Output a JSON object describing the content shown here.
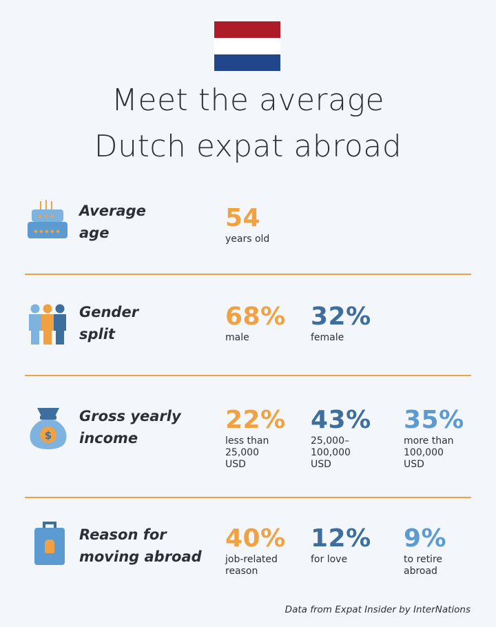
{
  "title": {
    "line1": "Meet the average",
    "line2": "Dutch expat abroad"
  },
  "flag": {
    "colors": [
      "#ae1c28",
      "#ffffff",
      "#21468b"
    ]
  },
  "colors": {
    "accent_orange": "#f0a141",
    "dark_blue": "#3d6e9d",
    "light_blue": "#5b9bd2"
  },
  "sections": [
    {
      "icon": "birthday-cake-icon",
      "label_lines": [
        "Average",
        "age"
      ],
      "stats": [
        {
          "value": "54",
          "desc_lines": [
            "years old"
          ]
        }
      ]
    },
    {
      "icon": "people-icon",
      "label_lines": [
        "Gender",
        "split"
      ],
      "stats": [
        {
          "value": "68%",
          "desc_lines": [
            "male"
          ]
        },
        {
          "value": "32%",
          "desc_lines": [
            "female"
          ]
        }
      ]
    },
    {
      "icon": "money-bag-icon",
      "label_lines": [
        "Gross yearly",
        "income"
      ],
      "stats": [
        {
          "value": "22%",
          "desc_lines": [
            "less than",
            "25,000",
            "USD"
          ]
        },
        {
          "value": "43%",
          "desc_lines": [
            "25,000–",
            "100,000",
            "USD"
          ]
        },
        {
          "value": "35%",
          "desc_lines": [
            "more than",
            "100,000",
            "USD"
          ]
        }
      ]
    },
    {
      "icon": "suitcase-icon",
      "label_lines": [
        "Reason for",
        "moving abroad"
      ],
      "stats": [
        {
          "value": "40%",
          "desc_lines": [
            "job-related",
            "reason"
          ]
        },
        {
          "value": "12%",
          "desc_lines": [
            "for love"
          ]
        },
        {
          "value": "9%",
          "desc_lines": [
            "to retire",
            "abroad"
          ]
        }
      ]
    }
  ],
  "footer": "Data from Expat Insider by InterNations"
}
